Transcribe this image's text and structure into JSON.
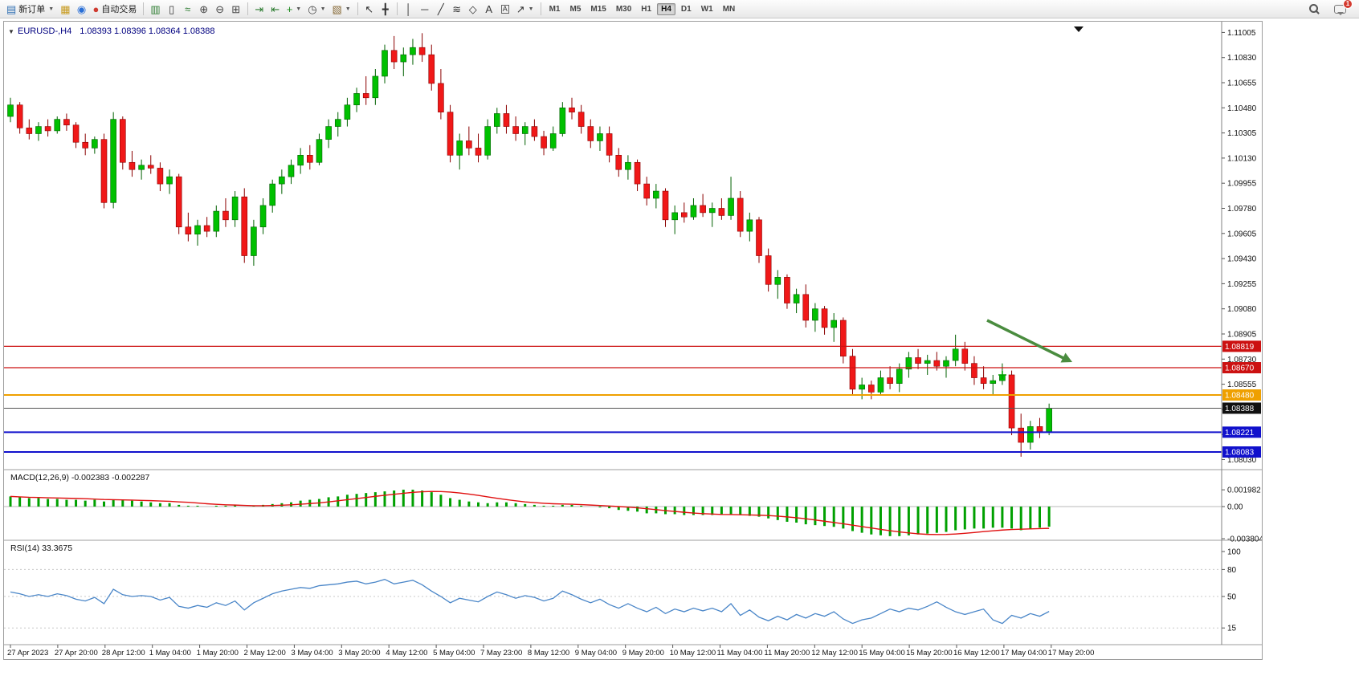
{
  "toolbar": {
    "items": [
      {
        "name": "new-order-button",
        "glyph": "▤",
        "glyph_color": "#2f6fb3",
        "label": "新订单",
        "dropdown": true
      },
      {
        "name": "chart-window-button",
        "glyph": "▦",
        "glyph_color": "#c79a1e"
      },
      {
        "name": "community-button",
        "glyph": "◉",
        "glyph_color": "#2a6fd6"
      },
      {
        "name": "autotrading-button",
        "glyph": "●",
        "glyph_color": "#cf3b30",
        "label": "自动交易"
      },
      {
        "type": "sep"
      },
      {
        "name": "bar-chart-button",
        "glyph": "▥",
        "glyph_color": "#2e7d32"
      },
      {
        "name": "candlestick-button",
        "glyph": "▯",
        "glyph_color": "#333333"
      },
      {
        "name": "line-chart-button",
        "glyph": "≈",
        "glyph_color": "#2e7d32"
      },
      {
        "name": "zoom-in-button",
        "glyph": "⊕",
        "glyph_color": "#444444"
      },
      {
        "name": "zoom-out-button",
        "glyph": "⊖",
        "glyph_color": "#444444"
      },
      {
        "name": "tile-windows-button",
        "glyph": "⊞",
        "glyph_color": "#444444"
      },
      {
        "type": "sep"
      },
      {
        "name": "auto-scroll-button",
        "glyph": "⇥",
        "glyph_color": "#2e7d32"
      },
      {
        "name": "chart-shift-button",
        "glyph": "⇤",
        "glyph_color": "#2e7d32"
      },
      {
        "name": "indicators-button",
        "glyph": "+",
        "glyph_color": "#1d8a1d",
        "dropdown": true
      },
      {
        "name": "periods-button",
        "glyph": "◷",
        "glyph_color": "#444444",
        "dropdown": true
      },
      {
        "name": "templates-button",
        "glyph": "▧",
        "glyph_color": "#8a6d3b",
        "dropdown": true
      },
      {
        "type": "sep"
      },
      {
        "name": "cursor-button",
        "glyph": "↖",
        "glyph_color": "#333333"
      },
      {
        "name": "crosshair-button",
        "glyph": "╋",
        "glyph_color": "#333333"
      },
      {
        "type": "sep"
      },
      {
        "name": "vertical-line-button",
        "glyph": "│",
        "glyph_color": "#333333"
      },
      {
        "name": "horizontal-line-button",
        "glyph": "─",
        "glyph_color": "#333333"
      },
      {
        "name": "trendline-button",
        "glyph": "╱",
        "glyph_color": "#333333"
      },
      {
        "name": "fibonacci-button",
        "glyph": "≋",
        "glyph_color": "#333333"
      },
      {
        "name": "shapes-button",
        "glyph": "◇",
        "glyph_color": "#333333"
      },
      {
        "name": "text-button",
        "glyph": "A",
        "glyph_color": "#333333"
      },
      {
        "name": "text-label-button",
        "glyph": "A",
        "glyph_color": "#333333",
        "boxed": true
      },
      {
        "name": "arrows-button",
        "glyph": "↗",
        "glyph_color": "#333333",
        "dropdown": true
      },
      {
        "type": "sep"
      }
    ],
    "timeframes": {
      "labels": [
        "M1",
        "M5",
        "M15",
        "M30",
        "H1",
        "H4",
        "D1",
        "W1",
        "MN"
      ],
      "active": "H4"
    },
    "right": {
      "chat_badge": "1"
    }
  },
  "chart": {
    "header": {
      "marker": "▼",
      "symbol": "EURUSD-,H4",
      "open": "1.08393",
      "high": "1.08396",
      "low": "1.08364",
      "close": "1.08388"
    },
    "price_axis_ticks": [
      "1.11005",
      "1.10830",
      "1.10655",
      "1.10480",
      "1.10305",
      "1.10130",
      "1.09955",
      "1.09780",
      "1.09605",
      "1.09430",
      "1.09255",
      "1.09080",
      "1.08905",
      "1.08730",
      "1.08555",
      "1.08380",
      "1.08205",
      "1.08030"
    ],
    "levels": [
      {
        "label": "1.08819",
        "price": 1.08819,
        "color": "#cc1111",
        "width": 1.2
      },
      {
        "label": "1.08670",
        "price": 1.0867,
        "color": "#cc1111",
        "width": 1.2
      },
      {
        "label": "1.08480",
        "price": 1.0848,
        "color": "#efa000",
        "width": 2
      },
      {
        "label": "1.08221",
        "price": 1.08221,
        "color": "#1111cc",
        "width": 2
      },
      {
        "label": "1.08083",
        "price": 1.08083,
        "color": "#1111cc",
        "width": 2
      }
    ],
    "bid_line": {
      "label": "1.08388",
      "price": 1.08388,
      "line_color": "#555555",
      "badge_color": "#111111"
    },
    "date_axis": [
      "27 Apr 2023",
      "27 Apr 20:00",
      "28 Apr 12:00",
      "1 May 04:00",
      "1 May 20:00",
      "2 May 12:00",
      "3 May 04:00",
      "3 May 20:00",
      "4 May 12:00",
      "5 May 04:00",
      "7 May 23:00",
      "8 May 12:00",
      "9 May 04:00",
      "9 May 20:00",
      "10 May 12:00",
      "11 May 04:00",
      "11 May 20:00",
      "12 May 12:00",
      "15 May 04:00",
      "15 May 20:00",
      "16 May 12:00",
      "17 May 04:00",
      "17 May 20:00"
    ]
  },
  "chart_data": {
    "type": "candlestick",
    "title": "EURUSD-,H4",
    "symbol": "EURUSD-",
    "timeframe": "H4",
    "ohlc_current": {
      "open": 1.08393,
      "high": 1.08396,
      "low": 1.08364,
      "close": 1.08388
    },
    "y_axis_range": [
      1.0796,
      1.1108
    ],
    "bull_color": "#00c000",
    "bear_color": "#f01818",
    "candles": [
      [
        1.1042,
        1.1055,
        1.1038,
        1.105
      ],
      [
        1.105,
        1.1052,
        1.103,
        1.1034
      ],
      [
        1.1034,
        1.104,
        1.1026,
        1.103
      ],
      [
        1.103,
        1.1038,
        1.1025,
        1.1035
      ],
      [
        1.1035,
        1.104,
        1.1028,
        1.1032
      ],
      [
        1.1032,
        1.1042,
        1.103,
        1.104
      ],
      [
        1.104,
        1.1044,
        1.1032,
        1.1036
      ],
      [
        1.1036,
        1.1038,
        1.102,
        1.1024
      ],
      [
        1.1024,
        1.103,
        1.1015,
        1.102
      ],
      [
        1.102,
        1.1028,
        1.1016,
        1.1026
      ],
      [
        1.1026,
        1.103,
        1.0978,
        1.0982
      ],
      [
        1.0982,
        1.1045,
        1.0978,
        1.104
      ],
      [
        1.104,
        1.1042,
        1.1005,
        1.101
      ],
      [
        1.101,
        1.1018,
        1.1,
        1.1005
      ],
      [
        1.1005,
        1.1012,
        1.0998,
        1.1008
      ],
      [
        1.1008,
        1.1015,
        1.1002,
        1.1006
      ],
      [
        1.1006,
        1.101,
        1.099,
        1.0995
      ],
      [
        1.0995,
        1.1005,
        1.0988,
        1.1
      ],
      [
        1.1,
        1.1002,
        1.096,
        1.0965
      ],
      [
        1.0965,
        1.0975,
        1.0955,
        1.096
      ],
      [
        1.096,
        1.097,
        1.0952,
        1.0966
      ],
      [
        1.0966,
        1.0972,
        1.0958,
        1.0962
      ],
      [
        1.0962,
        1.098,
        1.0958,
        1.0976
      ],
      [
        1.0976,
        1.0985,
        1.0965,
        1.097
      ],
      [
        1.097,
        1.099,
        1.0965,
        1.0986
      ],
      [
        1.0986,
        1.0992,
        1.094,
        1.0945
      ],
      [
        1.0945,
        1.097,
        1.0938,
        1.0965
      ],
      [
        1.0965,
        1.0985,
        1.096,
        1.098
      ],
      [
        1.098,
        1.0998,
        1.0975,
        1.0995
      ],
      [
        1.0995,
        1.1005,
        1.0988,
        1.1
      ],
      [
        1.1,
        1.1012,
        1.0995,
        1.1008
      ],
      [
        1.1008,
        1.102,
        1.1002,
        1.1015
      ],
      [
        1.1015,
        1.1022,
        1.1005,
        1.101
      ],
      [
        1.101,
        1.103,
        1.1008,
        1.1026
      ],
      [
        1.1026,
        1.104,
        1.102,
        1.1035
      ],
      [
        1.1035,
        1.1045,
        1.1028,
        1.104
      ],
      [
        1.104,
        1.1055,
        1.1035,
        1.105
      ],
      [
        1.105,
        1.1062,
        1.1045,
        1.1058
      ],
      [
        1.1058,
        1.107,
        1.105,
        1.1055
      ],
      [
        1.1055,
        1.1075,
        1.105,
        1.107
      ],
      [
        1.107,
        1.1092,
        1.1065,
        1.1088
      ],
      [
        1.1088,
        1.1098,
        1.1075,
        1.108
      ],
      [
        1.108,
        1.109,
        1.107,
        1.1085
      ],
      [
        1.1085,
        1.1096,
        1.1078,
        1.109
      ],
      [
        1.109,
        1.11,
        1.108,
        1.1085
      ],
      [
        1.1085,
        1.1092,
        1.106,
        1.1065
      ],
      [
        1.1065,
        1.1075,
        1.104,
        1.1045
      ],
      [
        1.1045,
        1.105,
        1.101,
        1.1015
      ],
      [
        1.1015,
        1.103,
        1.1005,
        1.1025
      ],
      [
        1.1025,
        1.1035,
        1.1015,
        1.102
      ],
      [
        1.102,
        1.103,
        1.101,
        1.1015
      ],
      [
        1.1015,
        1.104,
        1.1012,
        1.1035
      ],
      [
        1.1035,
        1.1048,
        1.103,
        1.1044
      ],
      [
        1.1044,
        1.105,
        1.103,
        1.1035
      ],
      [
        1.1035,
        1.1042,
        1.1025,
        1.103
      ],
      [
        1.103,
        1.1038,
        1.1022,
        1.1035
      ],
      [
        1.1035,
        1.104,
        1.1025,
        1.1028
      ],
      [
        1.1028,
        1.1032,
        1.1015,
        1.102
      ],
      [
        1.102,
        1.1035,
        1.1018,
        1.103
      ],
      [
        1.103,
        1.1052,
        1.1028,
        1.1048
      ],
      [
        1.1048,
        1.1055,
        1.104,
        1.1045
      ],
      [
        1.1045,
        1.105,
        1.103,
        1.1035
      ],
      [
        1.1035,
        1.104,
        1.102,
        1.1025
      ],
      [
        1.1025,
        1.1035,
        1.1018,
        1.103
      ],
      [
        1.103,
        1.1035,
        1.101,
        1.1015
      ],
      [
        1.1015,
        1.102,
        1.1,
        1.1005
      ],
      [
        1.1005,
        1.1015,
        1.0998,
        1.101
      ],
      [
        1.101,
        1.1012,
        1.099,
        1.0995
      ],
      [
        1.0995,
        1.1,
        1.098,
        1.0985
      ],
      [
        1.0985,
        1.0995,
        1.0978,
        1.099
      ],
      [
        1.099,
        1.0992,
        1.0965,
        1.097
      ],
      [
        1.097,
        1.098,
        1.096,
        1.0975
      ],
      [
        1.0975,
        1.0982,
        1.0968,
        1.0972
      ],
      [
        1.0972,
        1.0985,
        1.097,
        1.098
      ],
      [
        1.098,
        1.0988,
        1.0972,
        1.0975
      ],
      [
        1.0975,
        1.0982,
        1.0965,
        1.0978
      ],
      [
        1.0978,
        1.0985,
        1.097,
        1.0973
      ],
      [
        1.0973,
        1.1,
        1.097,
        1.0985
      ],
      [
        1.0985,
        1.099,
        1.0958,
        1.0962
      ],
      [
        1.0962,
        1.0975,
        1.0955,
        1.097
      ],
      [
        1.097,
        1.0972,
        1.094,
        1.0945
      ],
      [
        1.0945,
        1.095,
        1.092,
        1.0925
      ],
      [
        1.0925,
        1.0935,
        1.0915,
        1.093
      ],
      [
        1.093,
        1.0932,
        1.0908,
        1.0912
      ],
      [
        1.0912,
        1.0922,
        1.0905,
        1.0918
      ],
      [
        1.0918,
        1.0925,
        1.0895,
        1.09
      ],
      [
        1.09,
        1.0912,
        1.0892,
        1.0908
      ],
      [
        1.0908,
        1.091,
        1.089,
        1.0895
      ],
      [
        1.0895,
        1.0905,
        1.0885,
        1.09
      ],
      [
        1.09,
        1.0902,
        1.087,
        1.0875
      ],
      [
        1.0875,
        1.088,
        1.0848,
        1.0852
      ],
      [
        1.0852,
        1.086,
        1.0845,
        1.0855
      ],
      [
        1.0855,
        1.0858,
        1.0845,
        1.085
      ],
      [
        1.085,
        1.0865,
        1.0848,
        1.086
      ],
      [
        1.086,
        1.0868,
        1.0852,
        1.0856
      ],
      [
        1.0856,
        1.087,
        1.085,
        1.0866
      ],
      [
        1.0866,
        1.0878,
        1.086,
        1.0874
      ],
      [
        1.0874,
        1.088,
        1.0866,
        1.087
      ],
      [
        1.087,
        1.0876,
        1.0862,
        1.0872
      ],
      [
        1.0872,
        1.0878,
        1.0865,
        1.0868
      ],
      [
        1.0868,
        1.0875,
        1.086,
        1.0872
      ],
      [
        1.0872,
        1.089,
        1.0868,
        1.088
      ],
      [
        1.088,
        1.0885,
        1.0865,
        1.087
      ],
      [
        1.087,
        1.0875,
        1.0855,
        1.086
      ],
      [
        1.086,
        1.0868,
        1.0852,
        1.0856
      ],
      [
        1.0856,
        1.0862,
        1.0848,
        1.0858
      ],
      [
        1.0858,
        1.087,
        1.0855,
        1.0862
      ],
      [
        1.0862,
        1.0865,
        1.082,
        1.0825
      ],
      [
        1.0825,
        1.0835,
        1.0805,
        1.0815
      ],
      [
        1.0815,
        1.083,
        1.081,
        1.0826
      ],
      [
        1.0826,
        1.0832,
        1.0818,
        1.0822
      ],
      [
        1.0822,
        1.0842,
        1.082,
        1.08388
      ]
    ],
    "indicators": [
      {
        "type": "MACD",
        "name": "MACD(12,26,9)",
        "value_main": "-0.002383",
        "value_signal": "-0.002287",
        "axis_ticks": [
          "0.001982",
          "0.00",
          "-0.003804"
        ],
        "histogram_color": "#00a000",
        "signal_color": "#e01010",
        "signal_period": 9,
        "histogram": [
          0.0012,
          0.0011,
          0.001,
          0.001,
          0.0009,
          0.0009,
          0.0008,
          0.0008,
          0.0007,
          0.0008,
          0.0006,
          0.0008,
          0.0008,
          0.0007,
          0.0006,
          0.0005,
          0.0004,
          0.0004,
          0.0002,
          0.0001,
          0.0001,
          0,
          0.0001,
          0.0001,
          0.0002,
          0,
          0.0001,
          0.0002,
          0.0003,
          0.0004,
          0.0005,
          0.0007,
          0.0008,
          0.0009,
          0.0011,
          0.0012,
          0.0014,
          0.0015,
          0.0016,
          0.0017,
          0.0018,
          0.0019,
          0.002,
          0.002,
          0.0019,
          0.0017,
          0.0014,
          0.001,
          0.0008,
          0.0006,
          0.0005,
          0.0004,
          0.0005,
          0.0005,
          0.0004,
          0.0003,
          0.0002,
          0.0001,
          0.0001,
          0.0002,
          0.0002,
          0.0001,
          0,
          -0.0001,
          -0.0002,
          -0.0004,
          -0.0005,
          -0.0006,
          -0.0008,
          -0.0008,
          -0.0009,
          -0.0009,
          -0.001,
          -0.001,
          -0.001,
          -0.001,
          -0.001,
          -0.0009,
          -0.001,
          -0.0011,
          -0.0012,
          -0.0014,
          -0.0016,
          -0.0018,
          -0.0019,
          -0.0021,
          -0.0022,
          -0.0023,
          -0.0024,
          -0.0026,
          -0.0029,
          -0.0031,
          -0.0033,
          -0.0034,
          -0.0035,
          -0.0035,
          -0.0034,
          -0.0033,
          -0.0032,
          -0.0031,
          -0.003,
          -0.0028,
          -0.0027,
          -0.0026,
          -0.0026,
          -0.0025,
          -0.0025,
          -0.0026,
          -0.0028,
          -0.0027,
          -0.0025,
          -0.002383
        ]
      },
      {
        "type": "RSI",
        "name": "RSI(14)",
        "value": "33.3675",
        "axis_ticks": [
          "100",
          "80",
          "50",
          "15"
        ],
        "line_color": "#4a86c8",
        "levels": [
          80,
          50,
          15
        ],
        "values": [
          55,
          53,
          50,
          52,
          50,
          53,
          51,
          47,
          45,
          49,
          42,
          58,
          52,
          50,
          51,
          50,
          46,
          49,
          39,
          37,
          40,
          38,
          43,
          40,
          45,
          35,
          43,
          48,
          53,
          56,
          58,
          60,
          59,
          62,
          63,
          64,
          66,
          67,
          64,
          66,
          69,
          64,
          66,
          68,
          63,
          56,
          50,
          43,
          48,
          46,
          44,
          50,
          55,
          52,
          48,
          51,
          49,
          45,
          48,
          56,
          52,
          47,
          43,
          47,
          41,
          37,
          42,
          37,
          33,
          38,
          31,
          36,
          33,
          37,
          34,
          37,
          33,
          42,
          29,
          35,
          27,
          23,
          28,
          24,
          30,
          26,
          31,
          28,
          33,
          25,
          20,
          24,
          26,
          31,
          36,
          33,
          37,
          35,
          39,
          44,
          38,
          33,
          30,
          33,
          36,
          24,
          20,
          29,
          26,
          31,
          28,
          33.37
        ]
      }
    ],
    "annotations": [
      {
        "type": "arrow",
        "color": "#4a8c3f",
        "note": "downtrend arrow pointing to 1.08670 resistance"
      },
      {
        "type": "time-marker-triangle",
        "color": "#111111"
      },
      {
        "type": "plus-marker",
        "color": "#00a000"
      }
    ]
  }
}
